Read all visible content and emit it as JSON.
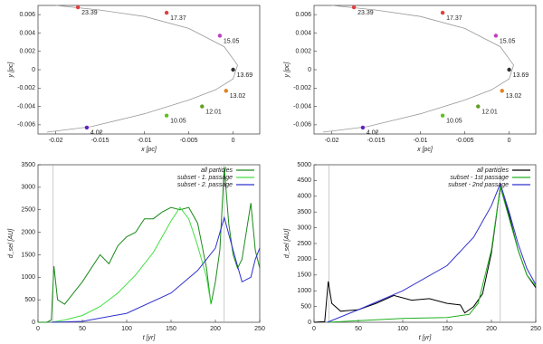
{
  "chart_data": [
    {
      "type": "orbit",
      "xlabel": "x [pc]",
      "ylabel": "y [pc]",
      "xlim": [
        -0.022,
        0.003
      ],
      "ylim": [
        -0.007,
        0.007
      ],
      "xticks": [
        -0.02,
        -0.015,
        -0.01,
        -0.005,
        0
      ],
      "yticks": [
        0.006,
        0.004,
        0.002,
        0,
        -0.002,
        -0.004,
        -0.006
      ],
      "series": [
        {
          "color": "#999999",
          "x": [
            -0.021,
            -0.016,
            -0.01,
            -0.005,
            -0.002,
            0,
            0.0005,
            -0.001,
            -0.005,
            -0.01,
            -0.015,
            -0.02
          ],
          "values": [
            -0.0068,
            -0.0062,
            -0.0048,
            -0.0033,
            -0.0022,
            -0.001,
            0.0005,
            0.0025,
            0.0045,
            0.0058,
            0.0065,
            0.007
          ]
        }
      ],
      "points": {
        "labels": [
          "23.39",
          "17.37",
          "15.05",
          "13.69",
          "13.02",
          "12.01",
          "10.05",
          "4.02"
        ],
        "x": [
          -0.0175,
          -0.0075,
          -0.0015,
          0,
          -0.0008,
          -0.0035,
          -0.0075,
          -0.0165
        ],
        "y": [
          0.0068,
          0.0062,
          0.0037,
          0,
          -0.0023,
          -0.004,
          -0.005,
          -0.0063
        ],
        "colors": [
          "#e04040",
          "#e04040",
          "#c040c0",
          "#303030",
          "#e08020",
          "#60a020",
          "#60c020",
          "#6020c0"
        ]
      }
    },
    {
      "type": "orbit",
      "xlabel": "x [pc]",
      "ylabel": "y [pc]",
      "xlim": [
        -0.022,
        0.003
      ],
      "ylim": [
        -0.007,
        0.007
      ],
      "xticks": [
        -0.02,
        -0.015,
        -0.01,
        -0.005,
        0
      ],
      "yticks": [
        0.006,
        0.004,
        0.002,
        0,
        -0.002,
        -0.004,
        -0.006
      ],
      "series": [
        {
          "color": "#999999",
          "x": [
            -0.021,
            -0.016,
            -0.01,
            -0.005,
            -0.002,
            0,
            0.0005,
            -0.001,
            -0.005,
            -0.01,
            -0.015,
            -0.02
          ],
          "values": [
            -0.0068,
            -0.0062,
            -0.0048,
            -0.0033,
            -0.0022,
            -0.001,
            0.0005,
            0.0025,
            0.0045,
            0.0058,
            0.0065,
            0.007
          ]
        }
      ],
      "points": {
        "labels": [
          "23.39",
          "17.37",
          "15.05",
          "13.69",
          "13.02",
          "12.01",
          "10.05",
          "4.02"
        ],
        "x": [
          -0.0175,
          -0.0075,
          -0.0015,
          0,
          -0.0008,
          -0.0035,
          -0.0075,
          -0.0165
        ],
        "y": [
          0.0068,
          0.0062,
          0.0037,
          0,
          -0.0023,
          -0.004,
          -0.005,
          -0.0063
        ],
        "colors": [
          "#e04040",
          "#e04040",
          "#c040c0",
          "#303030",
          "#e08020",
          "#60a020",
          "#60c020",
          "#6020c0"
        ]
      }
    },
    {
      "type": "line",
      "xlabel": "t [yr]",
      "ylabel": "d_sel [AU]",
      "xlim": [
        0,
        250
      ],
      "ylim": [
        0,
        3500
      ],
      "xticks": [
        0,
        50,
        100,
        150,
        200,
        250
      ],
      "yticks": [
        0,
        500,
        1000,
        1500,
        2000,
        2500,
        3000,
        3500
      ],
      "vlines": [
        17,
        210
      ],
      "series": [
        {
          "name": "all particles",
          "color": "#1a8a1a",
          "x": [
            0,
            10,
            15,
            18,
            22,
            30,
            40,
            50,
            60,
            70,
            80,
            90,
            100,
            110,
            120,
            130,
            140,
            150,
            160,
            170,
            180,
            190,
            195,
            200,
            205,
            210,
            215,
            220,
            225,
            230,
            240,
            245,
            250
          ],
          "values": [
            0,
            0,
            50,
            1250,
            500,
            400,
            650,
            900,
            1200,
            1500,
            1300,
            1700,
            1900,
            2000,
            2300,
            2300,
            2450,
            2550,
            2500,
            2550,
            2200,
            1200,
            400,
            900,
            1600,
            3450,
            2200,
            1500,
            1200,
            1400,
            2650,
            1600,
            1200
          ]
        },
        {
          "name": "subset - 1. passage",
          "color": "#40e040",
          "x": [
            15,
            30,
            50,
            70,
            90,
            110,
            130,
            150,
            160,
            170,
            180,
            190,
            195
          ],
          "values": [
            0,
            50,
            150,
            350,
            650,
            1050,
            1550,
            2250,
            2550,
            2300,
            1700,
            1000,
            400
          ]
        },
        {
          "name": "subset - 2. passage",
          "color": "#3030d0",
          "x": [
            15,
            50,
            100,
            150,
            180,
            200,
            210,
            220,
            230,
            240,
            245,
            250
          ],
          "values": [
            0,
            20,
            200,
            650,
            1150,
            1650,
            2330,
            1600,
            900,
            1000,
            1400,
            1650
          ]
        }
      ]
    },
    {
      "type": "line",
      "xlabel": "t [yr]",
      "ylabel": "d_sel [AU]",
      "xlim": [
        0,
        250
      ],
      "ylim": [
        0,
        5000
      ],
      "xticks": [
        0,
        50,
        100,
        150,
        200,
        250
      ],
      "yticks": [
        0,
        500,
        1000,
        1500,
        2000,
        2500,
        3000,
        3500,
        4000,
        4500,
        5000
      ],
      "vlines": [
        17,
        210
      ],
      "series": [
        {
          "name": "all particles",
          "color": "#000000",
          "x": [
            0,
            12,
            16,
            20,
            30,
            50,
            70,
            90,
            110,
            130,
            150,
            165,
            170,
            180,
            190,
            200,
            210,
            220,
            230,
            240,
            250
          ],
          "values": [
            0,
            20,
            1300,
            600,
            350,
            400,
            600,
            850,
            700,
            750,
            600,
            550,
            300,
            500,
            900,
            2200,
            4300,
            3400,
            2300,
            1500,
            1100
          ]
        },
        {
          "name": "subset - 1st passage",
          "color": "#20b020",
          "x": [
            15,
            50,
            100,
            150,
            175,
            185,
            200,
            210,
            220,
            230,
            240,
            250
          ],
          "values": [
            0,
            50,
            120,
            150,
            250,
            600,
            2300,
            4300,
            3300,
            2300,
            1500,
            1150
          ]
        },
        {
          "name": "subset - 2nd passage",
          "color": "#3030d0",
          "x": [
            15,
            50,
            100,
            150,
            180,
            200,
            210,
            220,
            230,
            240,
            250
          ],
          "values": [
            0,
            400,
            1000,
            1800,
            2700,
            3700,
            4400,
            3500,
            2500,
            1700,
            1200
          ]
        }
      ]
    }
  ]
}
